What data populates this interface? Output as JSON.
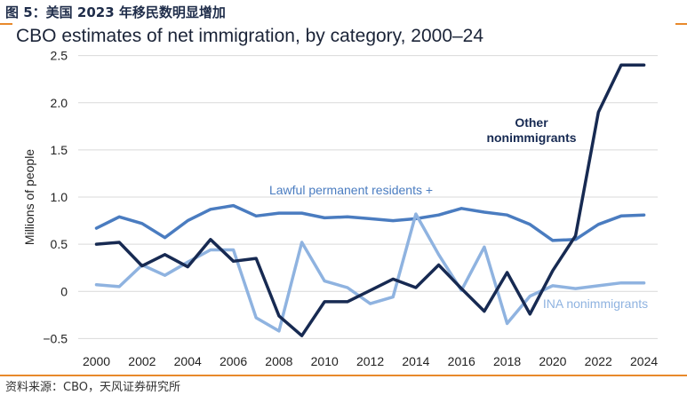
{
  "figure_label": "图 5：美国 2023 年移民数明显增加",
  "source": "资料来源：CBO，天风证券研究所",
  "colors": {
    "accent": "#e8892b",
    "lpr": "#4a7cc0",
    "ina": "#8fb3e0",
    "other": "#172a52",
    "grid": "#d9d9d9"
  },
  "chart_data": {
    "type": "line",
    "title": "CBO estimates of net immigration, by category, 2000–24",
    "xlabel": "",
    "ylabel": "Millions of people",
    "ylim": [
      -0.6,
      2.6
    ],
    "yticks": [
      -0.5,
      0,
      0.5,
      1.0,
      1.5,
      2.0,
      2.5
    ],
    "ytick_labels": [
      "−0.5",
      "0",
      "0.5",
      "1.0",
      "1.5",
      "2.0",
      "2.5"
    ],
    "xticks": [
      2000,
      2002,
      2004,
      2006,
      2008,
      2010,
      2012,
      2014,
      2016,
      2018,
      2020,
      2022,
      2024
    ],
    "xtick_labels": [
      "2000",
      "2002",
      "2004",
      "2006",
      "2008",
      "2010",
      "2012",
      "2014",
      "2016",
      "2018",
      "2020",
      "2022",
      "2024"
    ],
    "x": [
      2000,
      2001,
      2002,
      2003,
      2004,
      2005,
      2006,
      2007,
      2008,
      2009,
      2010,
      2011,
      2012,
      2013,
      2014,
      2015,
      2016,
      2017,
      2018,
      2019,
      2020,
      2021,
      2022,
      2023,
      2024
    ],
    "grid": true,
    "series": [
      {
        "name": "Lawful permanent residents +",
        "label_lines": [
          "Lawful permanent residents +"
        ],
        "color": "#4a7cc0",
        "width": 3.5,
        "values": [
          0.67,
          0.79,
          0.72,
          0.57,
          0.75,
          0.87,
          0.91,
          0.8,
          0.83,
          0.83,
          0.78,
          0.79,
          0.77,
          0.75,
          0.77,
          0.81,
          0.88,
          0.84,
          0.81,
          0.71,
          0.54,
          0.55,
          0.71,
          0.8,
          0.81
        ]
      },
      {
        "name": "INA nonimmigrants",
        "label_lines": [
          "INA nonimmigrants"
        ],
        "color": "#8fb3e0",
        "width": 3.5,
        "values": [
          0.07,
          0.05,
          0.28,
          0.17,
          0.31,
          0.44,
          0.44,
          -0.28,
          -0.42,
          0.52,
          0.11,
          0.04,
          -0.13,
          -0.06,
          0.82,
          0.39,
          0.01,
          0.47,
          -0.34,
          -0.05,
          0.06,
          0.03,
          0.06,
          0.09,
          0.09
        ]
      },
      {
        "name": "Other nonimmigrants",
        "label_lines": [
          "Other",
          "nonimmigrants"
        ],
        "color": "#172a52",
        "width": 3.5,
        "values": [
          0.5,
          0.52,
          0.27,
          0.39,
          0.26,
          0.55,
          0.32,
          0.35,
          -0.26,
          -0.47,
          -0.11,
          -0.11,
          0.01,
          0.13,
          0.04,
          0.28,
          0.03,
          -0.21,
          0.2,
          -0.24,
          0.22,
          0.59,
          1.9,
          2.4,
          2.4
        ]
      }
    ]
  }
}
